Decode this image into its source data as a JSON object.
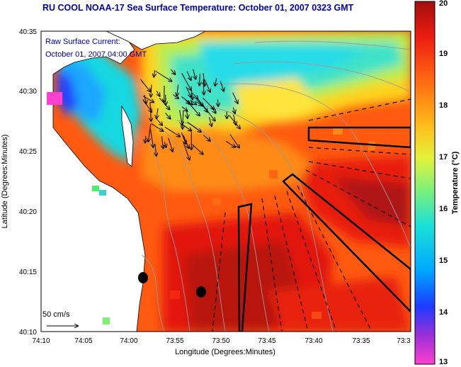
{
  "title": "RU COOL  NOAA-17  Sea Surface Temperature:  October 01, 2007 0323 GMT",
  "legend": {
    "line1": "Raw Surface Current:",
    "line2": "October 01, 2007 04:00 GMT",
    "scale_label": "50 cm/s"
  },
  "axes": {
    "xlabel": "Longitude (Degrees:Minutes)",
    "ylabel": "Latitude (Degrees:Minutes)",
    "x_ticks": [
      "74:10",
      "74:05",
      "74:00",
      "73:55",
      "73:50",
      "73:45",
      "73:40",
      "73:35",
      "73:3"
    ],
    "y_ticks": [
      "40:35",
      "40:30",
      "40:25",
      "40:20",
      "40:15",
      "40:10"
    ]
  },
  "colorbar": {
    "label": "Temperature (°C)",
    "ticks": [
      "20",
      "19",
      "18",
      "17",
      "16",
      "15",
      "14",
      "13"
    ],
    "min": 13,
    "max": 20
  },
  "colors": {
    "title": "#0000a8",
    "land": "#ffffff",
    "coast": "#000000",
    "contour": "#9a9a9a"
  }
}
